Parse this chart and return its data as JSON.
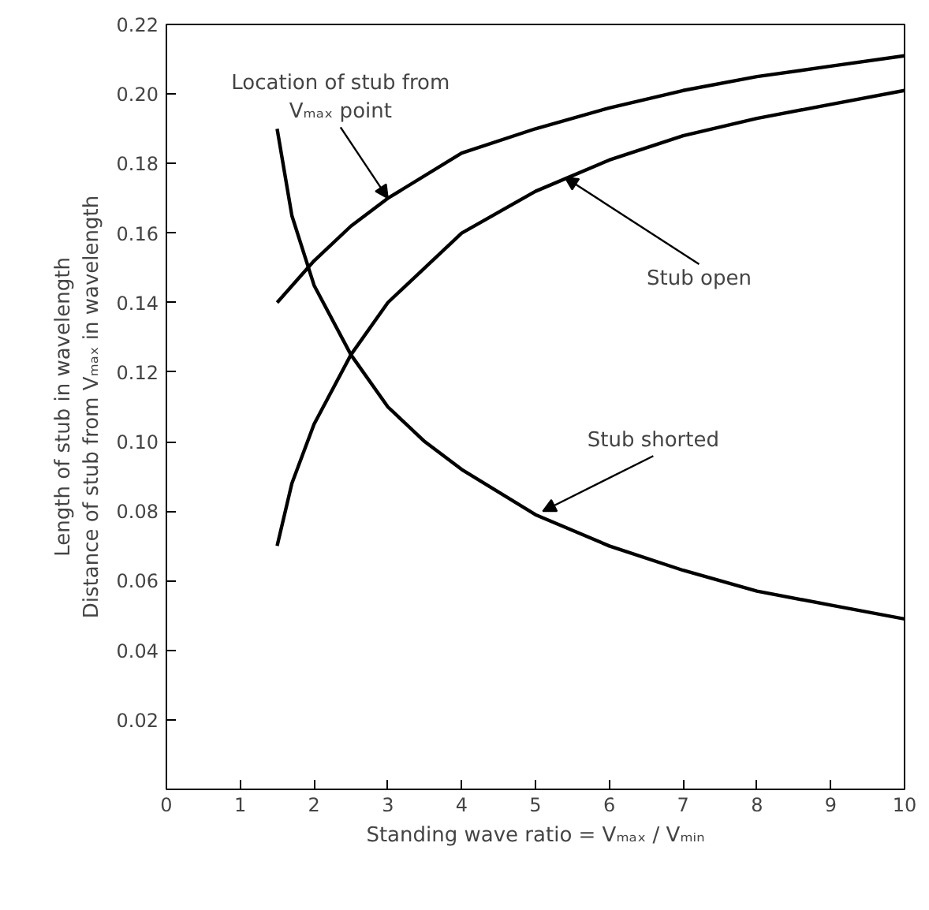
{
  "chart_data": {
    "type": "line",
    "xlabel": "Standing wave ratio = Vₘₐₓ / Vₘᵢₙ",
    "ylabel": "Length of stub in wavelength\nDistance of stub from Vₘₐₓ in wavelength",
    "xlim": [
      0,
      10
    ],
    "ylim": [
      0,
      0.22
    ],
    "xticks": [
      0,
      1,
      2,
      3,
      4,
      5,
      6,
      7,
      8,
      9,
      10
    ],
    "yticks": [
      0.02,
      0.04,
      0.06,
      0.08,
      {
        "value": 0.1,
        "label": "0.10"
      },
      0.12,
      0.14,
      0.16,
      0.18,
      {
        "value": 0.2,
        "label": "0.20"
      },
      0.22
    ],
    "grid": false,
    "marker": "none",
    "line_style": "solid",
    "series": [
      {
        "color": "#000000",
        "x": [
          1.5,
          1.7,
          2,
          2.5,
          3,
          3.5,
          4,
          5,
          6,
          7,
          8,
          9,
          10
        ],
        "values": [
          0.19,
          0.165,
          0.145,
          0.125,
          0.11,
          0.1,
          0.092,
          0.079,
          0.07,
          0.063,
          0.057,
          0.053,
          0.049
        ]
      },
      {
        "color": "#000000",
        "x": [
          1.5,
          2,
          2.5,
          3,
          4,
          5,
          6,
          7,
          8,
          9,
          10
        ],
        "values": [
          0.14,
          0.152,
          0.162,
          0.17,
          0.183,
          0.19,
          0.196,
          0.201,
          0.205,
          0.208,
          0.211
        ]
      },
      {
        "color": "#000000",
        "x": [
          1.5,
          1.7,
          2,
          2.5,
          3,
          4,
          5,
          6,
          7,
          8,
          9,
          10
        ],
        "values": [
          0.07,
          0.088,
          0.105,
          0.125,
          0.14,
          0.16,
          0.172,
          0.181,
          0.188,
          0.193,
          0.197,
          0.201
        ]
      }
    ],
    "annotations": [
      {
        "text": "Location of stub from\nVₘₐₓ point",
        "x": 3,
        "y": 0.17
      },
      {
        "text": "Stub open",
        "x": 5.4,
        "y": 0.176
      },
      {
        "text": "Stub shorted",
        "x": 5.1,
        "y": 0.08
      }
    ]
  }
}
